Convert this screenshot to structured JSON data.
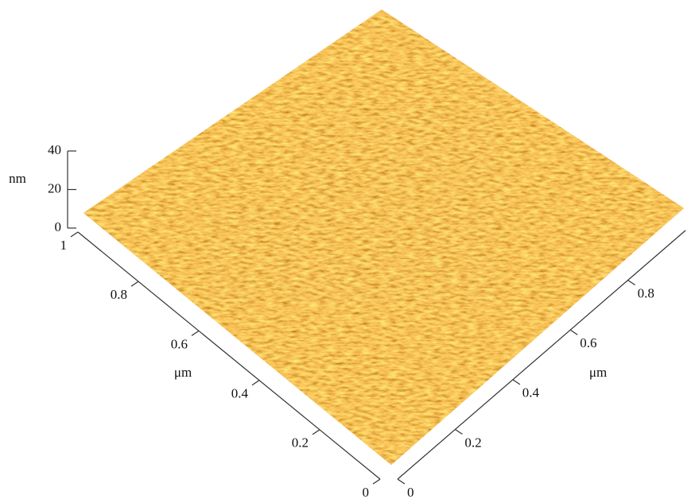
{
  "chart_data": {
    "type": "surface3d",
    "zlabel": "nm",
    "ylabel": "μm",
    "xlabel": "μm",
    "zlim": [
      0,
      40
    ],
    "zticks": [
      0,
      20,
      40
    ],
    "ylim": [
      0,
      1
    ],
    "yticks": [
      0,
      0.2,
      0.4,
      0.6,
      0.8,
      1
    ],
    "xlim": [
      0,
      1
    ],
    "xticks": [
      0,
      0.2,
      0.4,
      0.6,
      0.8
    ],
    "color": "#d9911e"
  }
}
